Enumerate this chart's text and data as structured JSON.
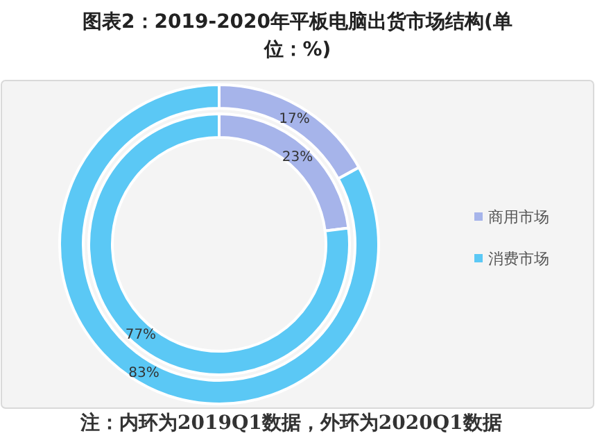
{
  "chart_data": {
    "type": "donut",
    "title": "图表2：2019-2020年平板电脑出货市场结构(单位：%)",
    "categories": [
      "商用市场",
      "消费市场"
    ],
    "colors": [
      "#a6b4ea",
      "#5bc8f5"
    ],
    "series": [
      {
        "values": [
          23,
          77
        ],
        "value_labels": [
          "23%",
          "77%"
        ]
      },
      {
        "values": [
          17,
          83
        ],
        "value_labels": [
          "17%",
          "83%"
        ]
      }
    ],
    "legend": "right",
    "annotations": [
      "注：内环为2019Q1数据，外环为2020Q1数据"
    ]
  }
}
